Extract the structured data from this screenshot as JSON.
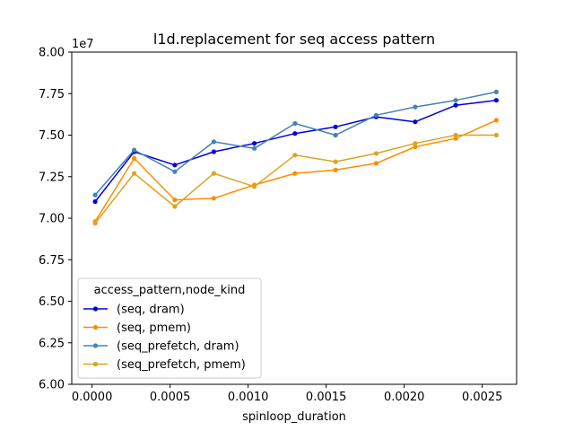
{
  "chart_data": {
    "type": "line",
    "title": "l1d.replacement for seq access pattern",
    "xlabel": "spinloop_duration",
    "ylabel": "",
    "y_offset_label": "1e7",
    "xlim": [
      -0.00013,
      0.00272
    ],
    "ylim": [
      6.0,
      8.0
    ],
    "x_ticks": [
      0.0,
      0.0005,
      0.001,
      0.0015,
      0.002,
      0.0025
    ],
    "x_tick_labels": [
      "0.0000",
      "0.0005",
      "0.0010",
      "0.0015",
      "0.0020",
      "0.0025"
    ],
    "y_ticks": [
      6.0,
      6.25,
      6.5,
      6.75,
      7.0,
      7.25,
      7.5,
      7.75,
      8.0
    ],
    "y_tick_labels": [
      "6.00",
      "6.25",
      "6.50",
      "6.75",
      "7.00",
      "7.25",
      "7.50",
      "7.75",
      "8.00"
    ],
    "grid": false,
    "legend": {
      "title": "access_pattern,node_kind",
      "placement": "lower-left"
    },
    "x": [
      2e-05,
      0.00027,
      0.00053,
      0.00078,
      0.00104,
      0.0013,
      0.00156,
      0.00182,
      0.00207,
      0.00233,
      0.00259
    ],
    "series": [
      {
        "name": "(seq, dram)",
        "color": "#0000dd",
        "values": [
          7.1,
          7.4,
          7.32,
          7.4,
          7.45,
          7.51,
          7.55,
          7.61,
          7.58,
          7.68,
          7.71
        ]
      },
      {
        "name": "(seq, pmem)",
        "color": "#ff8c00",
        "values": [
          6.98,
          7.36,
          7.11,
          7.12,
          7.2,
          7.27,
          7.29,
          7.33,
          7.43,
          7.48,
          7.59
        ]
      },
      {
        "name": "(seq_prefetch, dram)",
        "color": "#4682b4",
        "values": [
          7.14,
          7.41,
          7.28,
          7.46,
          7.42,
          7.57,
          7.5,
          7.62,
          7.67,
          7.71,
          7.76
        ]
      },
      {
        "name": "(seq_prefetch, pmem)",
        "color": "#daa520",
        "values": [
          6.97,
          7.27,
          7.07,
          7.27,
          7.19,
          7.38,
          7.34,
          7.39,
          7.45,
          7.5,
          7.5
        ]
      }
    ]
  }
}
